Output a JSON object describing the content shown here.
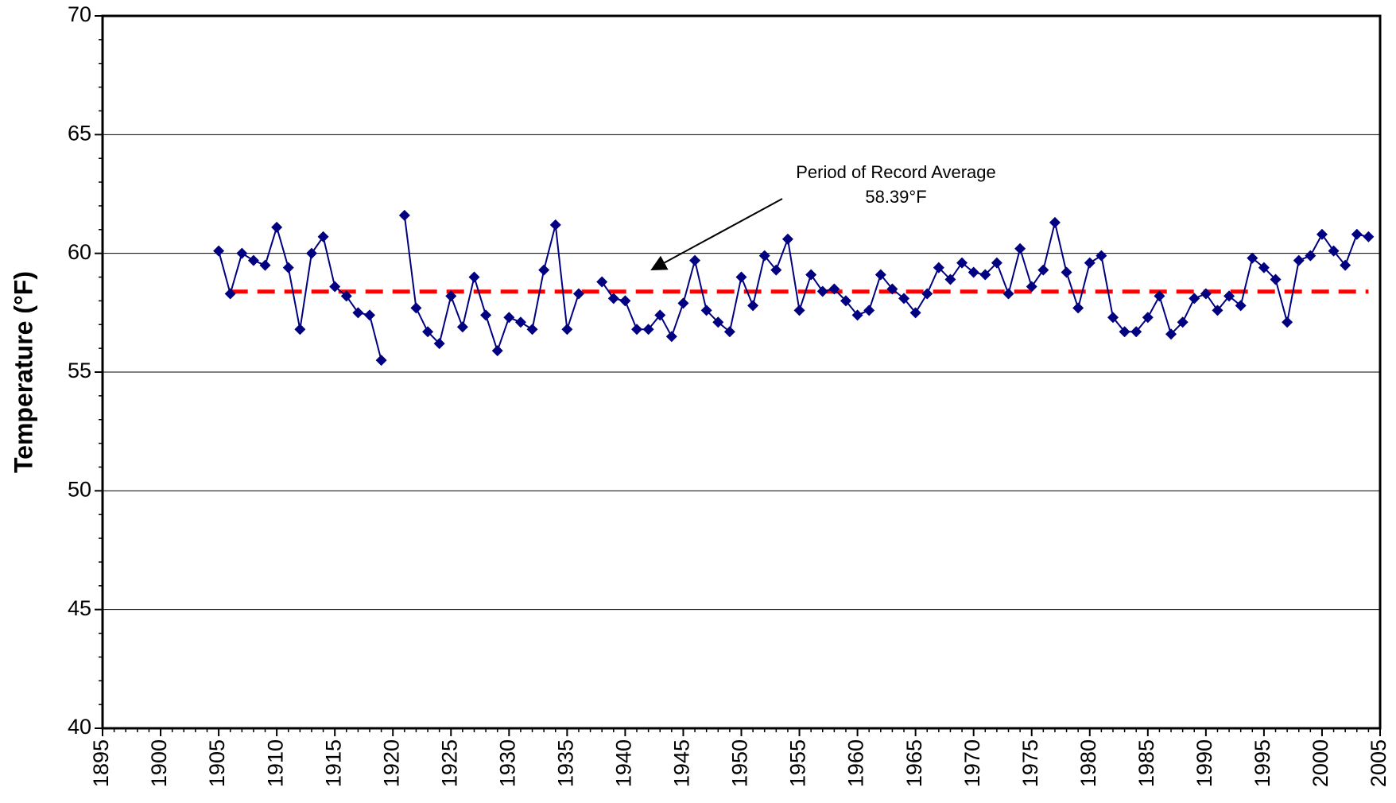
{
  "chart_data": {
    "type": "line",
    "ylabel": "Temperature (°F)",
    "x": [
      1905,
      1906,
      1907,
      1908,
      1909,
      1910,
      1911,
      1912,
      1913,
      1914,
      1915,
      1916,
      1917,
      1918,
      1919,
      1920,
      1921,
      1922,
      1923,
      1924,
      1925,
      1926,
      1927,
      1928,
      1929,
      1930,
      1931,
      1932,
      1933,
      1934,
      1935,
      1936,
      1937,
      1938,
      1939,
      1940,
      1941,
      1942,
      1943,
      1944,
      1945,
      1946,
      1947,
      1948,
      1949,
      1950,
      1951,
      1952,
      1953,
      1954,
      1955,
      1956,
      1957,
      1958,
      1959,
      1960,
      1961,
      1962,
      1963,
      1964,
      1965,
      1966,
      1967,
      1968,
      1969,
      1970,
      1971,
      1972,
      1973,
      1974,
      1975,
      1976,
      1977,
      1978,
      1979,
      1980,
      1981,
      1982,
      1983,
      1984,
      1985,
      1986,
      1987,
      1988,
      1989,
      1990,
      1991,
      1992,
      1993,
      1994,
      1995,
      1996,
      1997,
      1998,
      1999,
      2000,
      2001,
      2002,
      2003,
      2004
    ],
    "series": [
      {
        "color": "#000080",
        "values": [
          60.1,
          58.3,
          60.0,
          59.7,
          59.5,
          61.1,
          59.4,
          56.8,
          60.0,
          60.7,
          58.6,
          58.2,
          57.5,
          57.4,
          55.5,
          null,
          61.6,
          57.7,
          56.7,
          56.2,
          58.2,
          56.9,
          59.0,
          57.4,
          55.9,
          57.3,
          57.1,
          56.8,
          59.3,
          61.2,
          56.8,
          58.3,
          null,
          58.8,
          58.1,
          58.0,
          56.8,
          56.8,
          57.4,
          56.5,
          57.9,
          59.7,
          57.6,
          57.1,
          56.7,
          59.0,
          57.8,
          59.9,
          59.3,
          60.6,
          57.6,
          59.1,
          58.4,
          58.5,
          58.0,
          57.4,
          57.6,
          59.1,
          58.5,
          58.1,
          57.5,
          58.3,
          59.4,
          58.9,
          59.6,
          59.2,
          59.1,
          59.6,
          58.3,
          60.2,
          58.6,
          59.3,
          61.3,
          59.2,
          57.7,
          59.6,
          59.9,
          57.3,
          56.7,
          56.7,
          57.3,
          58.2,
          56.6,
          57.1,
          58.1,
          58.3,
          57.6,
          58.2,
          57.8,
          59.8,
          59.4,
          58.9,
          57.1,
          59.7,
          59.9,
          60.8,
          60.1,
          59.5,
          60.8,
          60.7
        ]
      }
    ],
    "average": {
      "value": 58.39,
      "label": "58.39°F",
      "color": "#ff0000",
      "xspan": [
        1906,
        2004
      ]
    },
    "annotation": "Period of Record Average",
    "xlim": [
      1895,
      2005
    ],
    "xticks": [
      1895,
      1900,
      1905,
      1910,
      1915,
      1920,
      1925,
      1930,
      1935,
      1940,
      1945,
      1950,
      1955,
      1960,
      1965,
      1970,
      1975,
      1980,
      1985,
      1990,
      1995,
      2000,
      2005
    ],
    "ylim": [
      40,
      70
    ],
    "yticks": [
      40,
      45,
      50,
      55,
      60,
      65,
      70
    ],
    "grid": true
  }
}
